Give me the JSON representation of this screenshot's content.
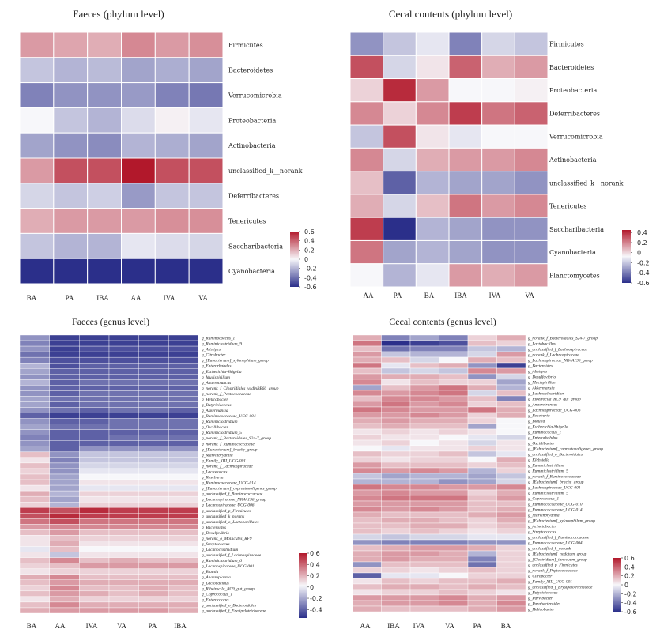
{
  "colors": {
    "neg": "#2b2f8a",
    "mid": "#f7f7fa",
    "pos": "#b2182b"
  },
  "chart_data": [
    {
      "type": "heatmap",
      "title": "Faeces (phylum level)",
      "columns": [
        "BA",
        "PA",
        "IBA",
        "AA",
        "IVA",
        "VA"
      ],
      "rows": [
        "Firmicutes",
        "Bacteroidetes",
        "Verrucomicrobia",
        "Proteobacteria",
        "Actinobacteria",
        "unclassified_k__norank",
        "Deferribacteres",
        "Tenericutes",
        "Saccharibacteria",
        "Cyanobacteria"
      ],
      "values": [
        [
          0.25,
          0.22,
          0.2,
          0.3,
          0.25,
          0.28
        ],
        [
          -0.15,
          -0.2,
          -0.18,
          -0.25,
          -0.22,
          -0.25
        ],
        [
          -0.35,
          -0.3,
          -0.3,
          -0.28,
          -0.35,
          -0.38
        ],
        [
          0.0,
          -0.15,
          -0.2,
          -0.08,
          0.02,
          -0.05
        ],
        [
          -0.25,
          -0.3,
          -0.32,
          -0.2,
          -0.22,
          -0.25
        ],
        [
          0.25,
          0.45,
          0.45,
          0.6,
          0.45,
          0.45
        ],
        [
          -0.1,
          -0.15,
          -0.12,
          -0.28,
          -0.15,
          -0.15
        ],
        [
          0.2,
          0.25,
          0.25,
          0.25,
          0.28,
          0.28
        ],
        [
          -0.15,
          -0.2,
          -0.2,
          -0.05,
          -0.08,
          -0.1
        ],
        [
          -0.6,
          -0.6,
          -0.62,
          -0.6,
          -0.6,
          -0.6
        ]
      ],
      "colorbar_ticks": [
        "0.6",
        "0.4",
        "0.2",
        "0",
        "-0.2",
        "-0.4",
        "-0.6"
      ],
      "vmin": -0.6,
      "vmax": 0.6
    },
    {
      "type": "heatmap",
      "title": "Cecal contents (phylum level)",
      "columns": [
        "AA",
        "PA",
        "BA",
        "IBA",
        "IVA",
        "VA"
      ],
      "rows": [
        "Firmicutes",
        "Bacteroidetes",
        "Proteobacteria",
        "Deferribacteres",
        "Verrucomicrobia",
        "Actinobacteria",
        "unclassified_k__norank",
        "Tenericutes",
        "Saccharibacteria",
        "Cyanobacteria",
        "Planctomycetes"
      ],
      "values": [
        [
          -0.3,
          -0.15,
          -0.05,
          -0.35,
          -0.1,
          -0.15
        ],
        [
          0.45,
          -0.1,
          0.05,
          0.4,
          0.2,
          0.25
        ],
        [
          0.1,
          0.55,
          0.25,
          0.0,
          0.0,
          0.02
        ],
        [
          0.3,
          0.1,
          0.3,
          0.5,
          0.35,
          0.4
        ],
        [
          -0.15,
          0.45,
          0.05,
          -0.05,
          0.0,
          0.0
        ],
        [
          0.3,
          -0.1,
          0.2,
          0.25,
          0.25,
          0.3
        ],
        [
          0.15,
          -0.45,
          -0.2,
          -0.25,
          -0.25,
          -0.3
        ],
        [
          0.2,
          -0.1,
          0.15,
          0.35,
          0.25,
          0.3
        ],
        [
          0.5,
          -0.6,
          -0.2,
          -0.25,
          -0.3,
          -0.3
        ],
        [
          0.35,
          -0.25,
          -0.2,
          -0.25,
          -0.3,
          -0.3
        ],
        [
          0.0,
          -0.2,
          -0.05,
          0.25,
          0.2,
          0.25
        ]
      ],
      "colorbar_ticks": [
        "0.4",
        "0.2",
        "0",
        "-0.2",
        "-0.4",
        "-0.6"
      ],
      "vmin": -0.6,
      "vmax": 0.45
    },
    {
      "type": "heatmap",
      "title": "Faeces (genus level)",
      "columns": [
        "BA",
        "AA",
        "IVA",
        "VA",
        "PA",
        "IBA"
      ],
      "rows": [
        "g_Ruminococcus_1",
        "g_Ruminiclostridium_9",
        "g_Alistipes",
        "g_Citrobacter",
        "g_[Eubacterium]_xylanophilum_group",
        "g_Enterorhabdus",
        "g_Escherichia-Shigella",
        "g_Mucispirillum",
        "g_Anaerotruncus",
        "g_norank_f_Clostridiales_vadinBB60_group",
        "g_norank_f_Peptococcaceae",
        "g_Helicobacter",
        "g_Butyricicoccus",
        "g_Akkermansia",
        "g_Ruminococcaceae_UCG-004",
        "g_Ruminiclostridium",
        "g_Oscillibacter",
        "g_Ruminiclostridium_5",
        "g_norank_f_Bacteroidales_S24-7_group",
        "g_norank_f_Ruminococcaceae",
        "g_[Eubacterium]_brachy_group",
        "g_Marvinbryantia",
        "g_Family_XIII_UCG-001",
        "g_norank_f_Lachnospiraceae",
        "g_Lactococcus",
        "g_Roseburia",
        "g_Ruminococcaceae_UCG-014",
        "g_[Eubacterium]_coprostanoligenes_group",
        "g_unclassified_f_Ruminococcaceae",
        "g_Lachnospiraceae_NK4A136_group",
        "g_Lachnospiraceae_UCG-006",
        "g_unclassified_p_Firmicutes",
        "g_unclassified_k_norank",
        "g_unclassified_o_Lactobacillales",
        "g_Bacteroides",
        "g_Desulfovibrio",
        "g_norank_o_Mollicutes_RF9",
        "g_Streptococcus",
        "g_Lachnoclostridium",
        "g_unclassified_f_Lachnospiraceae",
        "g_Ruminiclostridium_6",
        "g_Lachnospiraceae_UCG-001",
        "g_Blautia",
        "g_Anaeroplasma",
        "g_Lactobacillus",
        "g_Ribeiroclla_RC9_gut_group",
        "g_Coprococcus_1",
        "g_Enterococcus",
        "g_unclassified_o_Bacteroidales",
        "g_unclassified_f_Erysipelotrichaceae"
      ],
      "values": [
        [
          -0.3,
          -0.55,
          -0.55,
          -0.55,
          -0.55,
          -0.55
        ],
        [
          -0.35,
          -0.55,
          -0.55,
          -0.55,
          -0.55,
          -0.55
        ],
        [
          -0.3,
          -0.55,
          -0.5,
          -0.5,
          -0.5,
          -0.5
        ],
        [
          -0.4,
          -0.55,
          -0.55,
          -0.55,
          -0.55,
          -0.55
        ],
        [
          -0.35,
          -0.5,
          -0.5,
          -0.5,
          -0.5,
          -0.5
        ],
        [
          -0.2,
          -0.5,
          -0.45,
          -0.45,
          -0.45,
          -0.45
        ],
        [
          -0.25,
          -0.45,
          -0.45,
          -0.45,
          -0.45,
          -0.45
        ],
        [
          -0.3,
          -0.45,
          -0.45,
          -0.45,
          -0.45,
          -0.45
        ],
        [
          -0.2,
          -0.45,
          -0.4,
          -0.4,
          -0.4,
          -0.4
        ],
        [
          -0.3,
          -0.45,
          -0.45,
          -0.45,
          -0.45,
          -0.45
        ],
        [
          -0.3,
          -0.45,
          -0.4,
          -0.4,
          -0.4,
          -0.4
        ],
        [
          -0.25,
          -0.4,
          -0.4,
          -0.4,
          -0.4,
          -0.4
        ],
        [
          -0.25,
          -0.45,
          -0.4,
          -0.4,
          -0.4,
          -0.4
        ],
        [
          -0.3,
          -0.4,
          -0.45,
          -0.4,
          -0.4,
          -0.45
        ],
        [
          -0.45,
          -0.55,
          -0.55,
          -0.55,
          -0.55,
          -0.55
        ],
        [
          -0.3,
          -0.45,
          -0.45,
          -0.4,
          -0.4,
          -0.4
        ],
        [
          -0.25,
          -0.4,
          -0.4,
          -0.4,
          -0.4,
          -0.4
        ],
        [
          -0.3,
          -0.45,
          -0.45,
          -0.45,
          -0.45,
          -0.45
        ],
        [
          -0.35,
          -0.45,
          -0.45,
          -0.4,
          -0.4,
          -0.4
        ],
        [
          -0.3,
          -0.45,
          -0.45,
          -0.45,
          -0.45,
          -0.45
        ],
        [
          -0.25,
          -0.45,
          -0.3,
          -0.3,
          -0.3,
          -0.3
        ],
        [
          0.15,
          -0.3,
          -0.15,
          -0.15,
          -0.15,
          -0.15
        ],
        [
          0.05,
          -0.35,
          -0.15,
          -0.15,
          -0.15,
          -0.15
        ],
        [
          0.15,
          -0.3,
          -0.1,
          -0.1,
          -0.1,
          -0.1
        ],
        [
          0.1,
          -0.3,
          -0.05,
          -0.05,
          -0.05,
          -0.05
        ],
        [
          0.15,
          -0.25,
          0.0,
          0.0,
          0.0,
          0.0
        ],
        [
          0.15,
          -0.25,
          0.05,
          0.05,
          0.05,
          0.05
        ],
        [
          0.05,
          -0.25,
          -0.05,
          -0.05,
          -0.05,
          -0.05
        ],
        [
          0.2,
          -0.2,
          0.1,
          0.1,
          0.1,
          0.1
        ],
        [
          0.15,
          -0.25,
          0.05,
          0.05,
          0.05,
          0.05
        ],
        [
          0.1,
          -0.2,
          0.1,
          0.1,
          0.1,
          0.1
        ],
        [
          0.5,
          0.45,
          0.55,
          0.5,
          0.5,
          0.5
        ],
        [
          0.45,
          0.55,
          0.5,
          0.5,
          0.5,
          0.5
        ],
        [
          0.35,
          0.45,
          0.35,
          0.35,
          0.35,
          0.35
        ],
        [
          0.25,
          0.3,
          0.3,
          0.3,
          0.3,
          0.3
        ],
        [
          0.15,
          0.25,
          0.15,
          0.15,
          0.15,
          0.15
        ],
        [
          0.05,
          0.15,
          0.1,
          0.1,
          0.1,
          0.1
        ],
        [
          0.05,
          0.2,
          0.05,
          0.05,
          0.05,
          0.05
        ],
        [
          -0.05,
          0.15,
          0.0,
          0.0,
          0.0,
          0.0
        ],
        [
          0.05,
          -0.15,
          0.05,
          0.05,
          0.05,
          0.05
        ],
        [
          0.15,
          0.3,
          0.15,
          0.2,
          0.15,
          0.15
        ],
        [
          0.1,
          0.15,
          0.25,
          0.25,
          0.25,
          0.25
        ],
        [
          0.05,
          0.1,
          0.1,
          0.1,
          0.1,
          0.1
        ],
        [
          0.2,
          0.3,
          0.15,
          0.15,
          0.15,
          0.15
        ],
        [
          0.15,
          0.25,
          0.2,
          0.2,
          0.2,
          0.2
        ],
        [
          0.1,
          0.3,
          0.15,
          0.15,
          0.2,
          0.15
        ],
        [
          0.15,
          0.25,
          0.2,
          0.15,
          0.2,
          0.15
        ],
        [
          0.05,
          0.2,
          0.1,
          0.1,
          0.1,
          0.1
        ],
        [
          0.15,
          0.3,
          0.2,
          0.2,
          0.2,
          0.2
        ],
        [
          0.2,
          0.25,
          0.25,
          0.25,
          0.25,
          0.2
        ]
      ],
      "colorbar_ticks": [
        "0.6",
        "0.4",
        "0.2",
        "0",
        "-0.2",
        "-0.4"
      ],
      "vmin": -0.55,
      "vmax": 0.6
    },
    {
      "type": "heatmap",
      "title": "Cecal contents (genus level)",
      "columns": [
        "AA",
        "IBA",
        "IVA",
        "VA",
        "PA",
        "BA"
      ],
      "rows": [
        "g_norank_f_Bacteroidales_S24-7_group",
        "g_Lactobacillus",
        "g_unclassified_f_Lachnospiraceae",
        "g_norank_f_Lachnospiraceae",
        "g_Lachnospiraceae_NK4A136_group",
        "g_Bacteroides",
        "g_Alistipes",
        "g_Desulfovibrio",
        "g_Mucispirillum",
        "g_Akkermansia",
        "g_Lachnoclostridium",
        "g_Ribeiroclla_RC9_gut_group",
        "g_Anaerotruncus",
        "g_Lachnospiraceae_UCG-006",
        "g_Roseburia",
        "g_Blautia",
        "g_Escherichia-Shigella",
        "g_Ruminococcus_1",
        "g_Enterorhabdus",
        "g_Oscillibacter",
        "g_[Eubacterium]_coprostanoligenes_group",
        "g_unclassified_o_Bacteroidales",
        "g_Klebsiella",
        "g_Ruminiclostridium",
        "g_Ruminiclostridium_9",
        "g_norank_f_Ruminococcaceae",
        "g_[Eubacterium]_brachy_group",
        "g_Lachnospiraceae_UCG-001",
        "g_Ruminiclostridium_5",
        "g_Coprococcus_1",
        "g_Ruminococcaceae_UCG-010",
        "g_Ruminococcaceae_UCG-014",
        "g_Marvinbryantia",
        "g_[Eubacterium]_xylanophilum_group",
        "g_Acinetobacter",
        "g_Streptococcus",
        "g_unclassified_f_Ruminococcaceae",
        "g_Ruminococcaceae_UCG-004",
        "g_unclassified_k_norank",
        "g_[Eubacterium]_nodatum_group",
        "g_[Clostridium]_innocuum_group",
        "g_unclassified_p_Firmicutes",
        "g_norank_f_Peptococcaceae",
        "g_Citrobacter",
        "g_Family_XIII_UCG-001",
        "g_unclassified_f_Erysipelotrichaceae",
        "g_Butyricicoccus",
        "g_Parvibacter",
        "g_Parabacteroides",
        "g_Helicobacter"
      ],
      "values": [
        [
          0.2,
          -0.35,
          -0.25,
          -0.35,
          0.1,
          0.2
        ],
        [
          0.35,
          -0.6,
          -0.55,
          -0.5,
          0.15,
          0.1
        ],
        [
          0.15,
          -0.4,
          -0.35,
          -0.35,
          -0.15,
          -0.2
        ],
        [
          0.25,
          -0.15,
          -0.2,
          -0.2,
          -0.1,
          0.25
        ],
        [
          0.2,
          0.15,
          -0.1,
          0.0,
          0.2,
          0.15
        ],
        [
          0.35,
          -0.05,
          0.15,
          0.2,
          -0.3,
          -0.55
        ],
        [
          0.15,
          -0.15,
          -0.1,
          -0.15,
          0.3,
          0.25
        ],
        [
          0.25,
          0.2,
          0.2,
          0.15,
          -0.3,
          -0.1
        ],
        [
          0.3,
          0.05,
          0.15,
          0.1,
          0.1,
          -0.25
        ],
        [
          -0.25,
          0.15,
          0.25,
          0.35,
          0.2,
          -0.2
        ],
        [
          0.3,
          0.25,
          0.3,
          0.35,
          -0.1,
          0.15
        ],
        [
          0.15,
          0.3,
          0.3,
          0.25,
          0.15,
          -0.35
        ],
        [
          0.25,
          0.35,
          0.25,
          0.3,
          0.1,
          0.15
        ],
        [
          0.35,
          0.3,
          0.25,
          0.25,
          0.35,
          0.2
        ],
        [
          0.25,
          0.25,
          0.3,
          0.25,
          0.1,
          0.2
        ],
        [
          0.2,
          0.25,
          0.2,
          0.2,
          0.1,
          0.0
        ],
        [
          0.15,
          0.2,
          0.15,
          0.15,
          -0.25,
          0.0
        ],
        [
          0.05,
          0.1,
          0.05,
          0.1,
          0.05,
          0.0
        ],
        [
          0.1,
          0.05,
          0.05,
          0.0,
          -0.05,
          -0.1
        ],
        [
          0.05,
          0.1,
          0.0,
          0.05,
          -0.1,
          0.05
        ],
        [
          0.0,
          -0.05,
          0.05,
          0.05,
          0.1,
          0.05
        ],
        [
          0.15,
          0.1,
          0.1,
          0.15,
          -0.15,
          -0.05
        ],
        [
          0.1,
          0.05,
          0.1,
          0.1,
          0.0,
          0.2
        ],
        [
          0.25,
          0.15,
          0.15,
          0.15,
          0.1,
          0.15
        ],
        [
          0.3,
          0.25,
          0.3,
          0.25,
          -0.2,
          0.1
        ],
        [
          -0.15,
          -0.25,
          -0.2,
          -0.2,
          -0.25,
          -0.15
        ],
        [
          -0.2,
          -0.2,
          -0.2,
          -0.3,
          -0.25,
          -0.1
        ],
        [
          0.35,
          0.3,
          0.3,
          0.25,
          0.25,
          0.3
        ],
        [
          0.25,
          0.3,
          0.25,
          0.25,
          0.1,
          0.2
        ],
        [
          0.3,
          0.35,
          0.35,
          0.35,
          0.15,
          0.25
        ],
        [
          0.25,
          0.25,
          0.25,
          0.25,
          0.15,
          0.15
        ],
        [
          0.3,
          0.25,
          0.3,
          0.25,
          0.15,
          0.2
        ],
        [
          0.2,
          0.15,
          0.15,
          0.15,
          0.2,
          0.25
        ],
        [
          0.15,
          0.2,
          0.2,
          0.15,
          0.1,
          0.2
        ],
        [
          0.15,
          0.15,
          0.2,
          0.2,
          0.1,
          0.15
        ],
        [
          0.15,
          0.1,
          0.15,
          0.1,
          0.05,
          0.1
        ],
        [
          -0.1,
          -0.15,
          -0.1,
          -0.1,
          -0.05,
          -0.05
        ],
        [
          -0.3,
          -0.35,
          -0.35,
          -0.35,
          -0.3,
          -0.3
        ],
        [
          0.15,
          0.2,
          0.25,
          0.25,
          0.2,
          0.1
        ],
        [
          0.2,
          0.25,
          0.25,
          0.2,
          -0.2,
          0.1
        ],
        [
          0.2,
          0.25,
          0.2,
          0.2,
          -0.35,
          0.1
        ],
        [
          -0.3,
          0.15,
          0.15,
          0.15,
          -0.4,
          0.1
        ],
        [
          0.1,
          0.1,
          0.05,
          0.1,
          0.15,
          0.1
        ],
        [
          -0.45,
          -0.05,
          -0.05,
          0.0,
          0.1,
          0.1
        ],
        [
          0.05,
          0.15,
          0.1,
          0.15,
          0.15,
          0.2
        ],
        [
          0.15,
          0.2,
          0.2,
          0.15,
          0.2,
          0.15
        ],
        [
          0.05,
          0.1,
          0.1,
          0.15,
          0.1,
          0.05
        ],
        [
          0.25,
          0.25,
          0.25,
          0.3,
          0.2,
          0.25
        ],
        [
          0.2,
          0.25,
          0.25,
          0.3,
          0.2,
          0.3
        ],
        [
          0.2,
          0.15,
          0.15,
          0.15,
          0.2,
          0.25
        ]
      ],
      "colorbar_ticks": [
        "0.6",
        "0.4",
        "0.2",
        "0",
        "-0.2",
        "-0.4",
        "-0.6"
      ],
      "vmin": -0.6,
      "vmax": 0.6
    }
  ]
}
